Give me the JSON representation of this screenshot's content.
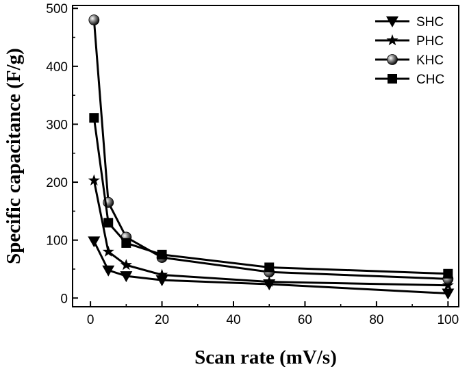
{
  "chart_data": {
    "type": "line",
    "xlabel": "Scan rate (mV/s)",
    "ylabel": "Specific capacitance (F/g)",
    "xlim": [
      -5,
      103
    ],
    "ylim": [
      -15,
      505
    ],
    "xticks": [
      0,
      20,
      40,
      60,
      80,
      100
    ],
    "yticks": [
      0,
      100,
      200,
      300,
      400,
      500
    ],
    "x": [
      1,
      5,
      10,
      20,
      50,
      100
    ],
    "legend_position": "top-right",
    "grid": false,
    "series": [
      {
        "name": "SHC",
        "marker": "triangle-down",
        "values": [
          98,
          48,
          38,
          31,
          24,
          8
        ]
      },
      {
        "name": "PHC",
        "marker": "star",
        "values": [
          203,
          80,
          57,
          40,
          28,
          22
        ]
      },
      {
        "name": "KHC",
        "marker": "sphere",
        "values": [
          480,
          165,
          105,
          70,
          45,
          33
        ]
      },
      {
        "name": "CHC",
        "marker": "square",
        "values": [
          311,
          130,
          95,
          75,
          53,
          42
        ]
      }
    ]
  }
}
